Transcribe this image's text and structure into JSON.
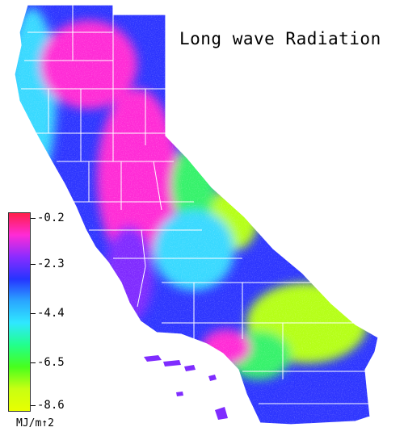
{
  "title": "Long wave Radiation",
  "legend": {
    "ticks": [
      "-0.2",
      "-2.3",
      "-4.4",
      "-6.5",
      "-8.6"
    ],
    "unit": "MJ/m↑2",
    "colors": [
      "#ff1f4a",
      "#ff2bd6",
      "#8a2cff",
      "#2634ff",
      "#2aa6ff",
      "#2fe8ff",
      "#22ff8c",
      "#47ff1d",
      "#c8ff12",
      "#e8ff00"
    ]
  },
  "map": {
    "region": "California",
    "fill_colors": {
      "magenta": "#ff2bd6",
      "violet": "#7f2cff",
      "blue": "#2d35ff",
      "cyan": "#39d9ff",
      "green": "#35f26a",
      "lime": "#b5ff19"
    },
    "boundary_color": "#ffffff"
  }
}
